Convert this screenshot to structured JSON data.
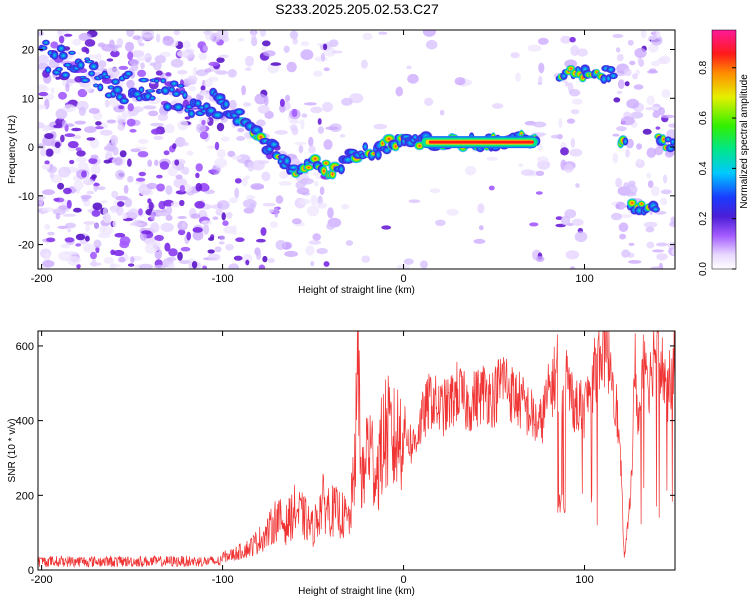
{
  "title": "S233.2025.205.02.53.C27",
  "chart_data": [
    {
      "type": "heatmap",
      "xlabel": "Height of straight line (km)",
      "ylabel": "Frequency (Hz)",
      "xlim": [
        -202,
        150
      ],
      "ylim": [
        -25,
        24
      ],
      "x_ticks": [
        -200,
        -100,
        0,
        100
      ],
      "y_ticks": [
        -20,
        -10,
        0,
        10,
        20
      ],
      "colorbar": {
        "label": "Normalized spectral amplitude",
        "range": [
          0,
          0.95
        ],
        "ticks": [
          0.0,
          0.2,
          0.4,
          0.6,
          0.8
        ],
        "colormap": "rainbow (white-purple-blue-cyan-green-yellow-red-magenta)"
      },
      "ridge": [
        {
          "x": -200,
          "y": 19
        },
        {
          "x": -180,
          "y": 16
        },
        {
          "x": -160,
          "y": 13
        },
        {
          "x": -140,
          "y": 11
        },
        {
          "x": -120,
          "y": 10
        },
        {
          "x": -100,
          "y": 8
        },
        {
          "x": -90,
          "y": 6
        },
        {
          "x": -80,
          "y": 2
        },
        {
          "x": -70,
          "y": -1
        },
        {
          "x": -60,
          "y": -5
        },
        {
          "x": -50,
          "y": -3
        },
        {
          "x": -40,
          "y": -5
        },
        {
          "x": -30,
          "y": -2
        },
        {
          "x": -20,
          "y": -1
        },
        {
          "x": -10,
          "y": 0
        },
        {
          "x": 0,
          "y": 2
        },
        {
          "x": 10,
          "y": 1
        },
        {
          "x": 40,
          "y": 1
        },
        {
          "x": 74,
          "y": 1.5
        }
      ],
      "segments": [
        {
          "x": [
            86,
            117
          ],
          "y": [
            15,
            15
          ]
        },
        {
          "x": [
            120,
            123
          ],
          "y": [
            1,
            1
          ]
        },
        {
          "x": [
            125,
            140
          ],
          "y": [
            -12,
            -12
          ]
        },
        {
          "x": [
            141,
            150
          ],
          "y": [
            1,
            1
          ]
        }
      ],
      "bright_band": {
        "x": [
          10,
          74
        ],
        "y": 1,
        "amplitude": 0.9
      },
      "empty_regions": [
        {
          "x": [
            78,
            84
          ]
        },
        {
          "x": [
            99,
            117
          ]
        }
      ]
    },
    {
      "type": "line",
      "xlabel": "Height of straight line (km)",
      "ylabel": "SNR (10 * v/v)",
      "xlim": [
        -202,
        150
      ],
      "ylim": [
        0,
        640
      ],
      "x_ticks": [
        -200,
        -100,
        0,
        100
      ],
      "y_ticks": [
        0,
        200,
        400,
        600
      ],
      "color": "#f03333",
      "series": [
        {
          "x": [
            -202,
            -190,
            -180,
            -170,
            -160,
            -150,
            -140,
            -130,
            -120,
            -110,
            -100,
            -95,
            -90,
            -85,
            -80,
            -75,
            -70,
            -65,
            -60,
            -55,
            -50,
            -45,
            -40,
            -35,
            -30,
            -28,
            -26,
            -25,
            -24,
            -22,
            -20,
            -15,
            -10,
            -5,
            0,
            5,
            10,
            15,
            20,
            25,
            30,
            35,
            40,
            45,
            50,
            55,
            60,
            65,
            70,
            75,
            80,
            84,
            85,
            86,
            87,
            88,
            89,
            90,
            92,
            95,
            100,
            105,
            110,
            115,
            118,
            120,
            122,
            124,
            126,
            128,
            130,
            133,
            136,
            140,
            143,
            146,
            150
          ],
          "values": [
            25,
            22,
            24,
            22,
            25,
            24,
            26,
            25,
            30,
            30,
            35,
            40,
            50,
            60,
            80,
            100,
            140,
            120,
            160,
            140,
            110,
            180,
            160,
            150,
            130,
            210,
            400,
            650,
            300,
            230,
            350,
            260,
            370,
            340,
            380,
            330,
            400,
            460,
            430,
            440,
            480,
            440,
            460,
            480,
            460,
            520,
            470,
            450,
            420,
            380,
            470,
            520,
            560,
            180,
            170,
            560,
            450,
            520,
            480,
            440,
            430,
            520,
            600,
            550,
            420,
            280,
            30,
            120,
            260,
            550,
            380,
            600,
            500,
            640,
            540,
            480,
            560
          ]
        }
      ]
    }
  ]
}
